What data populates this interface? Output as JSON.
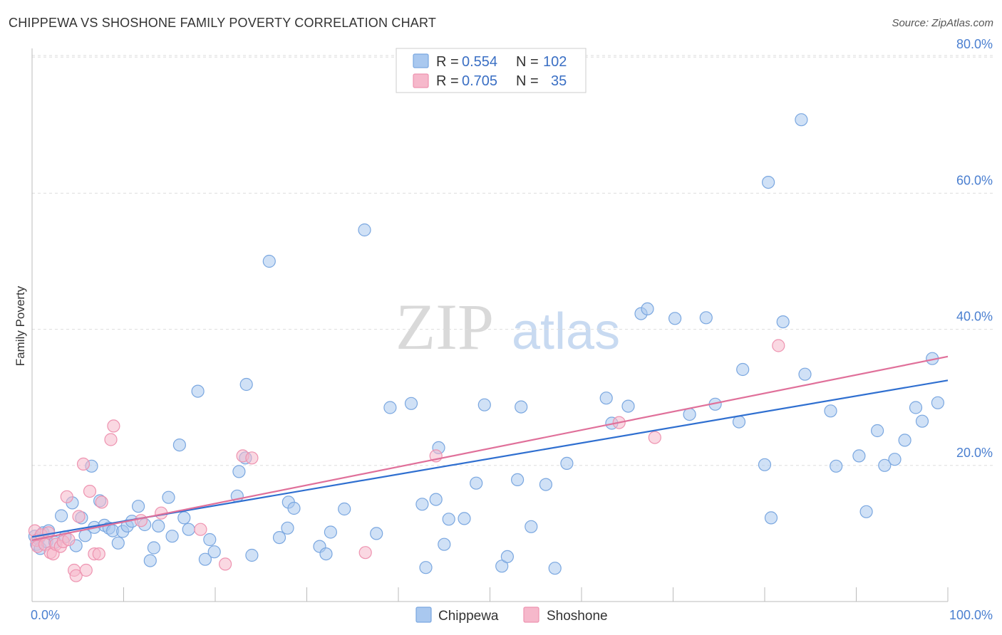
{
  "header": {
    "title": "CHIPPEWA VS SHOSHONE FAMILY POVERTY CORRELATION CHART",
    "source": "Source: ZipAtlas.com"
  },
  "watermark": {
    "part1": "ZIP",
    "part2": "atlas"
  },
  "legend_top": [
    {
      "r_label": "R =",
      "r_value": "0.554",
      "n_label": "N =",
      "n_value": "102"
    },
    {
      "r_label": "R =",
      "r_value": "0.705",
      "n_label": "N =",
      "n_value": "35"
    }
  ],
  "colors": {
    "chippewa_fill": "#a9c8ef",
    "chippewa_stroke": "#7aa7e0",
    "chippewa_line": "#2f6fd0",
    "shoshone_fill": "#f6b8cb",
    "shoshone_stroke": "#ee93b0",
    "shoshone_line": "#e0709a",
    "grid": "#dddddd",
    "axis_text": "#4a7fd0"
  },
  "chart_data": {
    "type": "scatter",
    "title": "CHIPPEWA VS SHOSHONE FAMILY POVERTY CORRELATION CHART",
    "xlabel": "",
    "ylabel": "Family Poverty",
    "x_tick_labels": [
      "0.0%",
      "100.0%"
    ],
    "y_tick_labels": [
      "20.0%",
      "40.0%",
      "60.0%",
      "80.0%"
    ],
    "y_ticks": [
      20,
      40,
      60,
      80
    ],
    "xlim": [
      0,
      100
    ],
    "ylim": [
      0,
      82
    ],
    "grid": true,
    "legend": "top-center",
    "series": [
      {
        "name": "Chippewa",
        "r": 0.554,
        "n": 102,
        "trend": {
          "x0": 0,
          "y0": 9.5,
          "x1": 100,
          "y1": 32.5
        },
        "points": [
          [
            0.3,
            9.6
          ],
          [
            0.5,
            8.4
          ],
          [
            0.7,
            9.2
          ],
          [
            0.9,
            7.8
          ],
          [
            1.2,
            10.1
          ],
          [
            1.6,
            8.8
          ],
          [
            1.8,
            10.4
          ],
          [
            2.5,
            8.7
          ],
          [
            3.2,
            12.6
          ],
          [
            3.6,
            9.5
          ],
          [
            4.4,
            14.5
          ],
          [
            4.8,
            8.2
          ],
          [
            5.4,
            12.3
          ],
          [
            5.8,
            9.7
          ],
          [
            6.5,
            19.9
          ],
          [
            6.8,
            10.9
          ],
          [
            7.4,
            14.8
          ],
          [
            7.9,
            11.2
          ],
          [
            8.4,
            10.8
          ],
          [
            8.8,
            10.4
          ],
          [
            9.4,
            8.6
          ],
          [
            9.9,
            10.3
          ],
          [
            10.4,
            11.1
          ],
          [
            10.9,
            11.8
          ],
          [
            11.6,
            14.0
          ],
          [
            12.3,
            11.3
          ],
          [
            12.9,
            6.0
          ],
          [
            13.3,
            7.9
          ],
          [
            13.8,
            11.1
          ],
          [
            14.9,
            15.3
          ],
          [
            15.3,
            9.6
          ],
          [
            16.1,
            23.0
          ],
          [
            16.6,
            12.3
          ],
          [
            17.1,
            10.6
          ],
          [
            18.1,
            30.9
          ],
          [
            18.9,
            6.2
          ],
          [
            19.4,
            9.1
          ],
          [
            19.9,
            7.3
          ],
          [
            22.4,
            15.5
          ],
          [
            22.6,
            19.1
          ],
          [
            23.3,
            21.1
          ],
          [
            23.4,
            31.9
          ],
          [
            24.0,
            6.8
          ],
          [
            25.9,
            50.0
          ],
          [
            27.0,
            9.4
          ],
          [
            27.9,
            10.8
          ],
          [
            28.0,
            14.6
          ],
          [
            28.6,
            13.7
          ],
          [
            31.4,
            8.1
          ],
          [
            32.1,
            7.0
          ],
          [
            32.6,
            10.2
          ],
          [
            34.1,
            13.6
          ],
          [
            36.3,
            54.6
          ],
          [
            37.6,
            10.0
          ],
          [
            39.1,
            28.5
          ],
          [
            41.4,
            29.1
          ],
          [
            42.6,
            14.3
          ],
          [
            43.0,
            5.0
          ],
          [
            44.1,
            15.0
          ],
          [
            44.4,
            22.6
          ],
          [
            45.0,
            8.4
          ],
          [
            45.5,
            12.1
          ],
          [
            47.2,
            12.2
          ],
          [
            48.5,
            17.4
          ],
          [
            49.4,
            28.9
          ],
          [
            51.3,
            5.2
          ],
          [
            51.9,
            6.6
          ],
          [
            53.0,
            17.9
          ],
          [
            53.4,
            28.6
          ],
          [
            54.5,
            11.0
          ],
          [
            56.1,
            17.2
          ],
          [
            57.1,
            4.9
          ],
          [
            58.4,
            20.3
          ],
          [
            62.7,
            29.9
          ],
          [
            63.3,
            26.2
          ],
          [
            65.1,
            28.7
          ],
          [
            66.5,
            42.3
          ],
          [
            67.2,
            43.0
          ],
          [
            70.2,
            41.6
          ],
          [
            71.8,
            27.5
          ],
          [
            73.6,
            41.7
          ],
          [
            74.6,
            29.0
          ],
          [
            77.2,
            26.4
          ],
          [
            77.6,
            34.1
          ],
          [
            80.0,
            20.1
          ],
          [
            80.4,
            61.6
          ],
          [
            80.7,
            12.3
          ],
          [
            82.0,
            41.1
          ],
          [
            84.0,
            70.8
          ],
          [
            84.4,
            33.4
          ],
          [
            87.2,
            28.0
          ],
          [
            87.8,
            19.9
          ],
          [
            90.3,
            21.4
          ],
          [
            91.1,
            13.2
          ],
          [
            92.3,
            25.1
          ],
          [
            93.1,
            20.0
          ],
          [
            94.2,
            20.9
          ],
          [
            95.3,
            23.7
          ],
          [
            96.5,
            28.5
          ],
          [
            97.2,
            26.5
          ],
          [
            98.3,
            35.7
          ],
          [
            98.9,
            29.2
          ]
        ]
      },
      {
        "name": "Shoshone",
        "r": 0.705,
        "n": 35,
        "trend": {
          "x0": 0,
          "y0": 9.0,
          "x1": 100,
          "y1": 36.0
        },
        "points": [
          [
            0.3,
            10.4
          ],
          [
            0.5,
            9.0
          ],
          [
            0.6,
            8.1
          ],
          [
            1.0,
            9.8
          ],
          [
            1.4,
            8.4
          ],
          [
            1.8,
            10.1
          ],
          [
            2.0,
            7.2
          ],
          [
            2.3,
            7.0
          ],
          [
            2.6,
            8.4
          ],
          [
            3.1,
            8.1
          ],
          [
            3.4,
            8.8
          ],
          [
            3.8,
            15.4
          ],
          [
            4.0,
            9.1
          ],
          [
            4.6,
            4.6
          ],
          [
            4.8,
            3.8
          ],
          [
            5.1,
            12.5
          ],
          [
            5.6,
            20.2
          ],
          [
            5.9,
            4.6
          ],
          [
            6.3,
            16.2
          ],
          [
            6.8,
            7.0
          ],
          [
            7.3,
            7.0
          ],
          [
            7.6,
            14.6
          ],
          [
            8.6,
            23.8
          ],
          [
            8.9,
            25.8
          ],
          [
            11.9,
            11.9
          ],
          [
            14.1,
            13.0
          ],
          [
            18.4,
            10.6
          ],
          [
            21.1,
            5.5
          ],
          [
            23.0,
            21.4
          ],
          [
            24.0,
            21.1
          ],
          [
            36.4,
            7.2
          ],
          [
            44.1,
            21.4
          ],
          [
            64.1,
            26.3
          ],
          [
            68.0,
            24.1
          ],
          [
            81.5,
            37.6
          ]
        ]
      }
    ]
  },
  "bottom_legend": [
    {
      "name": "Chippewa"
    },
    {
      "name": "Shoshone"
    }
  ]
}
